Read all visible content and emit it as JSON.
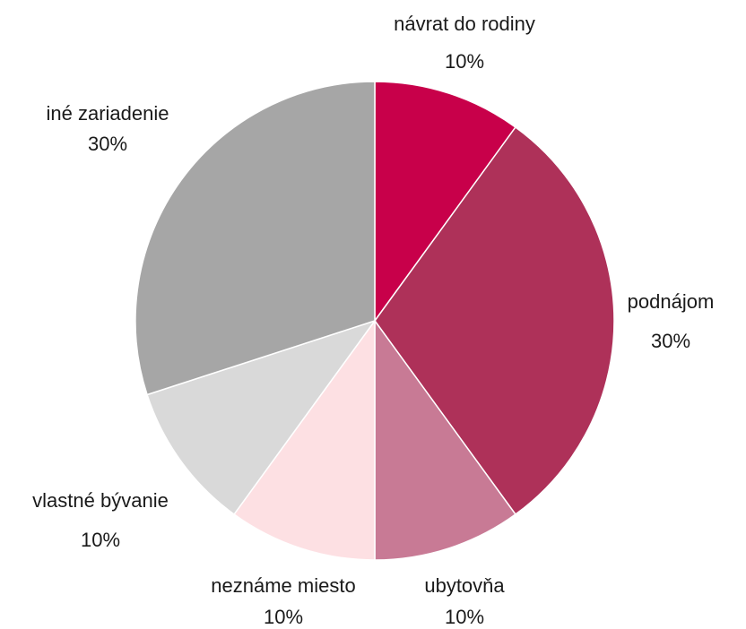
{
  "chart_data": {
    "type": "pie",
    "categories": [
      "návrat do rodiny",
      "podnájom",
      "ubytovňa",
      "neznáme miesto",
      "vlastné bývanie",
      "iné zariadenie"
    ],
    "values": [
      10,
      30,
      10,
      10,
      10,
      30
    ],
    "value_labels": [
      "10%",
      "30%",
      "10%",
      "10%",
      "10%",
      "30%"
    ],
    "colors": [
      "#c8004a",
      "#ae3159",
      "#c87a95",
      "#fde0e3",
      "#d9d9d9",
      "#a6a6a6"
    ]
  }
}
